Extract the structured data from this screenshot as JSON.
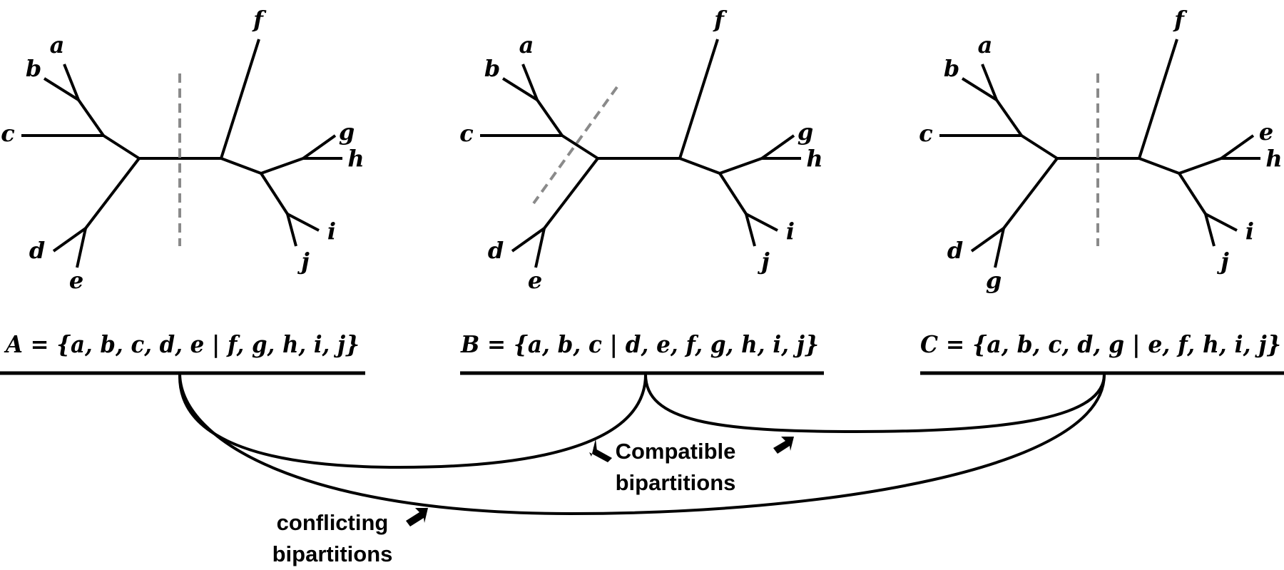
{
  "trees": [
    {
      "id": "A",
      "leaves": {
        "a": "a",
        "b": "b",
        "c": "c",
        "d": "d",
        "e": "e",
        "f": "f",
        "g": "g",
        "h": "h",
        "i": "i",
        "j": "j"
      },
      "bipartition": "A = {a, b, c, d, e | f, g, h, i, j}",
      "cut_type": "vertical"
    },
    {
      "id": "B",
      "leaves": {
        "a": "a",
        "b": "b",
        "c": "c",
        "d": "d",
        "e": "e",
        "f": "f",
        "g": "g",
        "h": "h",
        "i": "i",
        "j": "j"
      },
      "bipartition": "B = {a, b, c | d, e, f, g, h, i, j}",
      "cut_type": "diagonal"
    },
    {
      "id": "C",
      "leaves": {
        "a": "a",
        "b": "b",
        "c": "c",
        "d": "d",
        "e": "g",
        "f": "f",
        "g": "e",
        "h": "h",
        "i": "i",
        "j": "j"
      },
      "bipartition": "C = {a, b, c, d, g | e, f, h, i, j}",
      "cut_type": "vertical"
    }
  ],
  "annotations": {
    "compatible_line1": "Compatible",
    "compatible_line2": "bipartitions",
    "conflicting_line1": "conflicting",
    "conflicting_line2": "bipartitions"
  },
  "colors": {
    "edge": "#000000",
    "cut_line": "#8a8a8a",
    "background": "#ffffff"
  }
}
